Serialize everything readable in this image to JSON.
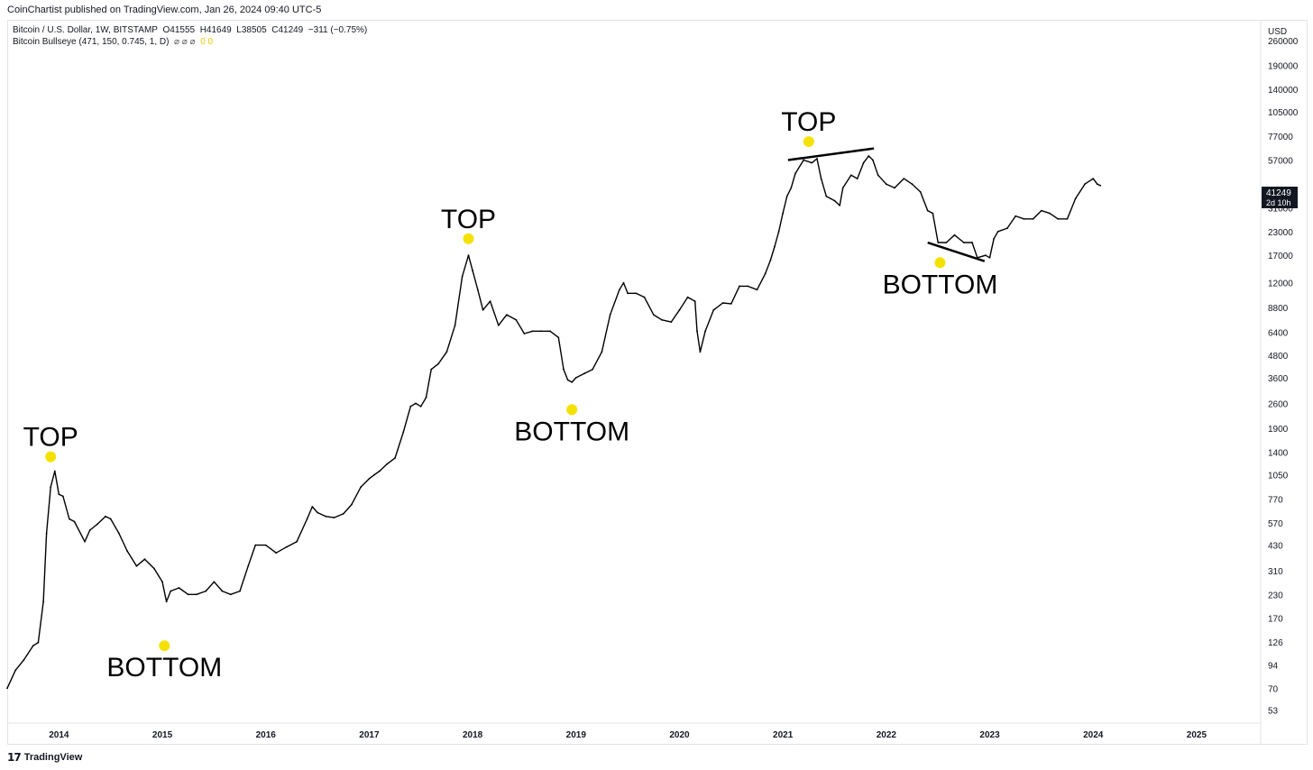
{
  "header": {
    "published_line": "CoinChartist published on TradingView.com, Jan 26, 2024 09:40 UTC-5"
  },
  "legend": {
    "symbol": "Bitcoin / U.S. Dollar, 1W, BITSTAMP",
    "open": "O41555",
    "high": "H41649",
    "low": "L38505",
    "close": "C41249",
    "change": "−311 (−0.75%)",
    "indicator": "Bitcoin Bullseye (471, 150, 0.745, 1, D)",
    "indicator_flags": "⌀ ⌀ ⌀",
    "indicator_values": "0 0"
  },
  "footer": {
    "brand": "TradingView"
  },
  "price_tag": {
    "value": "41249",
    "countdown": "2d 10h"
  },
  "colors": {
    "candle": "#000000",
    "marker": "#f5e100",
    "axis_text": "#131722",
    "grid_border": "#e0e3eb"
  },
  "chart_data": {
    "type": "line",
    "scale": "log",
    "currency": "USD",
    "x_tick_labels": [
      "2014",
      "2015",
      "2016",
      "2017",
      "2018",
      "2019",
      "2020",
      "2021",
      "2022",
      "2023",
      "2024",
      "2025"
    ],
    "xlim": [
      2013.5,
      2025.62
    ],
    "y_tick_labels": [
      "260000",
      "190000",
      "140000",
      "105000",
      "77000",
      "57000",
      "41249",
      "31000",
      "23000",
      "17000",
      "12000",
      "8800",
      "6400",
      "4800",
      "3600",
      "2600",
      "1900",
      "1400",
      "1050",
      "770",
      "570",
      "430",
      "310",
      "230",
      "170",
      "126",
      "94",
      "70",
      "53"
    ],
    "y_ticks": [
      260000,
      190000,
      140000,
      105000,
      77000,
      57000,
      31000,
      23000,
      17000,
      12000,
      8800,
      6400,
      4800,
      3600,
      2600,
      1900,
      1400,
      1050,
      770,
      570,
      430,
      310,
      230,
      170,
      126,
      94,
      70,
      53
    ],
    "ylim": [
      46,
      330000
    ],
    "series": [
      {
        "x": [
          2013.5,
          2013.58,
          2013.66,
          2013.75,
          2013.8,
          2013.85,
          2013.88,
          2013.92,
          2013.96,
          2014.0,
          2014.04,
          2014.1,
          2014.15,
          2014.25,
          2014.3,
          2014.37,
          2014.45,
          2014.5,
          2014.58,
          2014.66,
          2014.75,
          2014.83,
          2014.92,
          2015.0,
          2015.04,
          2015.08,
          2015.16,
          2015.25,
          2015.33,
          2015.42,
          2015.5,
          2015.58,
          2015.66,
          2015.75,
          2015.83,
          2015.9,
          2016.0,
          2016.1,
          2016.2,
          2016.3,
          2016.4,
          2016.45,
          2016.5,
          2016.58,
          2016.66,
          2016.75,
          2016.83,
          2016.92,
          2017.0,
          2017.05,
          2017.1,
          2017.17,
          2017.25,
          2017.33,
          2017.4,
          2017.45,
          2017.5,
          2017.55,
          2017.6,
          2017.67,
          2017.75,
          2017.83,
          2017.9,
          2017.96,
          2018.0,
          2018.05,
          2018.1,
          2018.17,
          2018.25,
          2018.33,
          2018.42,
          2018.5,
          2018.58,
          2018.66,
          2018.75,
          2018.83,
          2018.88,
          2018.92,
          2018.96,
          2019.0,
          2019.08,
          2019.16,
          2019.25,
          2019.33,
          2019.42,
          2019.46,
          2019.5,
          2019.58,
          2019.66,
          2019.75,
          2019.83,
          2019.92,
          2020.0,
          2020.08,
          2020.15,
          2020.17,
          2020.2,
          2020.25,
          2020.33,
          2020.42,
          2020.5,
          2020.58,
          2020.66,
          2020.75,
          2020.83,
          2020.88,
          2020.92,
          2020.96,
          2021.0,
          2021.04,
          2021.08,
          2021.12,
          2021.2,
          2021.28,
          2021.33,
          2021.37,
          2021.42,
          2021.5,
          2021.55,
          2021.58,
          2021.66,
          2021.72,
          2021.78,
          2021.83,
          2021.87,
          2021.92,
          2022.0,
          2022.08,
          2022.17,
          2022.25,
          2022.33,
          2022.4,
          2022.45,
          2022.5,
          2022.58,
          2022.66,
          2022.75,
          2022.83,
          2022.88,
          2022.96,
          2023.0,
          2023.04,
          2023.08,
          2023.17,
          2023.25,
          2023.33,
          2023.42,
          2023.5,
          2023.58,
          2023.66,
          2023.75,
          2023.83,
          2023.92,
          2024.0,
          2024.04,
          2024.07
        ],
        "values": [
          70,
          88,
          100,
          120,
          125,
          210,
          500,
          900,
          1100,
          820,
          800,
          600,
          580,
          450,
          520,
          560,
          620,
          600,
          500,
          400,
          330,
          360,
          320,
          270,
          210,
          240,
          250,
          230,
          230,
          240,
          270,
          240,
          230,
          240,
          330,
          430,
          430,
          390,
          420,
          450,
          600,
          700,
          650,
          620,
          610,
          640,
          720,
          900,
          1000,
          1050,
          1100,
          1200,
          1300,
          1800,
          2500,
          2600,
          2500,
          2800,
          4000,
          4300,
          5000,
          7000,
          13000,
          17000,
          14000,
          11000,
          8500,
          9500,
          7000,
          8000,
          7500,
          6300,
          6500,
          6500,
          6500,
          6000,
          4000,
          3500,
          3400,
          3600,
          3800,
          4000,
          5000,
          8000,
          11000,
          12000,
          10500,
          10500,
          10000,
          8000,
          7500,
          7300,
          8500,
          10000,
          9500,
          6500,
          5000,
          6500,
          8500,
          9300,
          9200,
          11500,
          11500,
          11000,
          13500,
          16000,
          19000,
          23000,
          29000,
          36000,
          40000,
          48000,
          57000,
          55000,
          58000,
          45000,
          36000,
          34000,
          32000,
          40000,
          47000,
          45000,
          55000,
          60000,
          57000,
          47000,
          42000,
          40000,
          45000,
          42000,
          38000,
          30000,
          29000,
          20000,
          20000,
          22000,
          20000,
          20000,
          16500,
          17000,
          16500,
          21000,
          23000,
          24000,
          28000,
          27000,
          27000,
          30000,
          29000,
          27000,
          27000,
          35000,
          42000,
          45000,
          42000,
          41249
        ]
      }
    ],
    "annotations": [
      {
        "label": "TOP",
        "x": 2013.92,
        "y": 1320
      },
      {
        "label": "BOTTOM",
        "x": 2015.02,
        "y": 120
      },
      {
        "label": "TOP",
        "x": 2017.96,
        "y": 21000
      },
      {
        "label": "BOTTOM",
        "x": 2018.96,
        "y": 2400
      },
      {
        "label": "TOP",
        "x": 2021.25,
        "y": 72000
      },
      {
        "label": "BOTTOM",
        "x": 2022.52,
        "y": 15500
      }
    ],
    "trendlines": [
      {
        "x": [
          2021.05,
          2021.88
        ],
        "y": [
          57000,
          66000
        ]
      },
      {
        "x": [
          2022.4,
          2022.95
        ],
        "y": [
          20000,
          15800
        ]
      }
    ]
  }
}
